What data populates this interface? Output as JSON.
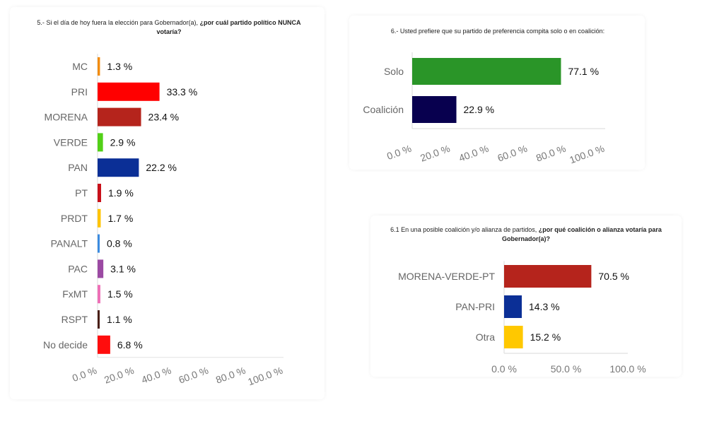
{
  "charts": {
    "q5": {
      "title_plain": "5.- Si el día de hoy fuera la elección para Gobernador(a), ",
      "title_bold": "¿por cuál partido político NUNCA votaría?"
    },
    "q6": {
      "title_plain": "6.- Usted prefiere que su partido de preferencia compita solo o en coalición:",
      "title_bold": ""
    },
    "q61": {
      "title_plain": "6.1 En una posible coalición y/o alianza de partidos, ",
      "title_bold": "¿por qué coalición o alianza votaría para Gobernador(a)?"
    }
  },
  "chart_data": [
    {
      "id": "q5",
      "type": "bar",
      "orientation": "horizontal",
      "title": "5.- Si el día de hoy fuera la elección para Gobernador(a), ¿por cuál partido político NUNCA votaría?",
      "categories": [
        "MC",
        "PRI",
        "MORENA",
        "VERDE",
        "PAN",
        "PT",
        "PRDT",
        "PANALT",
        "PAC",
        "FxMT",
        "RSPT",
        "No decide"
      ],
      "values": [
        1.3,
        33.3,
        23.4,
        2.9,
        22.2,
        1.9,
        1.7,
        0.8,
        3.1,
        1.5,
        1.1,
        6.8
      ],
      "value_labels": [
        "1.3 %",
        "33.3 %",
        "23.4 %",
        "2.9 %",
        "22.2 %",
        "1.9 %",
        "1.7 %",
        "0.8 %",
        "3.1 %",
        "1.5 %",
        "1.1 %",
        "6.8 %"
      ],
      "colors": [
        "#f28c0f",
        "#ff0000",
        "#b5241c",
        "#52d017",
        "#0b2f96",
        "#c8101a",
        "#ffc400",
        "#3b8be0",
        "#9b4aa3",
        "#ee6fb6",
        "#4a1f17",
        "#ff0d0d"
      ],
      "xlim": [
        0,
        100
      ],
      "tick_labels": [
        "0.0 %",
        "20.0 %",
        "40.0 %",
        "60.0 %",
        "80.0 %",
        "100.0 %"
      ],
      "tick_values": [
        0,
        20,
        40,
        60,
        80,
        100
      ],
      "tick_rotation": "rotated",
      "grid": false
    },
    {
      "id": "q6",
      "type": "bar",
      "orientation": "horizontal",
      "title": "6.- Usted prefiere que su partido de preferencia compita solo o en coalición:",
      "categories": [
        "Solo",
        "Coalición"
      ],
      "values": [
        77.1,
        22.9
      ],
      "value_labels": [
        "77.1 %",
        "22.9 %"
      ],
      "colors": [
        "#2a9528",
        "#08004f"
      ],
      "xlim": [
        0,
        100
      ],
      "tick_labels": [
        "0.0 %",
        "20.0 %",
        "40.0 %",
        "60.0 %",
        "80.0 %",
        "100.0 %"
      ],
      "tick_values": [
        0,
        20,
        40,
        60,
        80,
        100
      ],
      "tick_rotation": "rotated",
      "grid": false
    },
    {
      "id": "q61",
      "type": "bar",
      "orientation": "horizontal",
      "title": "6.1 En una posible coalición y/o alianza de partidos, ¿por qué coalición o alianza votaría para Gobernador(a)?",
      "categories": [
        "MORENA-VERDE-PT",
        "PAN-PRI",
        "Otra"
      ],
      "values": [
        70.5,
        14.3,
        15.2
      ],
      "value_labels": [
        "70.5 %",
        "14.3 %",
        "15.2 %"
      ],
      "colors": [
        "#b5241c",
        "#0b2f96",
        "#ffc800"
      ],
      "xlim": [
        0,
        100
      ],
      "tick_labels": [
        "0.0 %",
        "50.0 %",
        "100.0 %"
      ],
      "tick_values": [
        0,
        50,
        100
      ],
      "tick_rotation": "none",
      "grid": false
    }
  ]
}
